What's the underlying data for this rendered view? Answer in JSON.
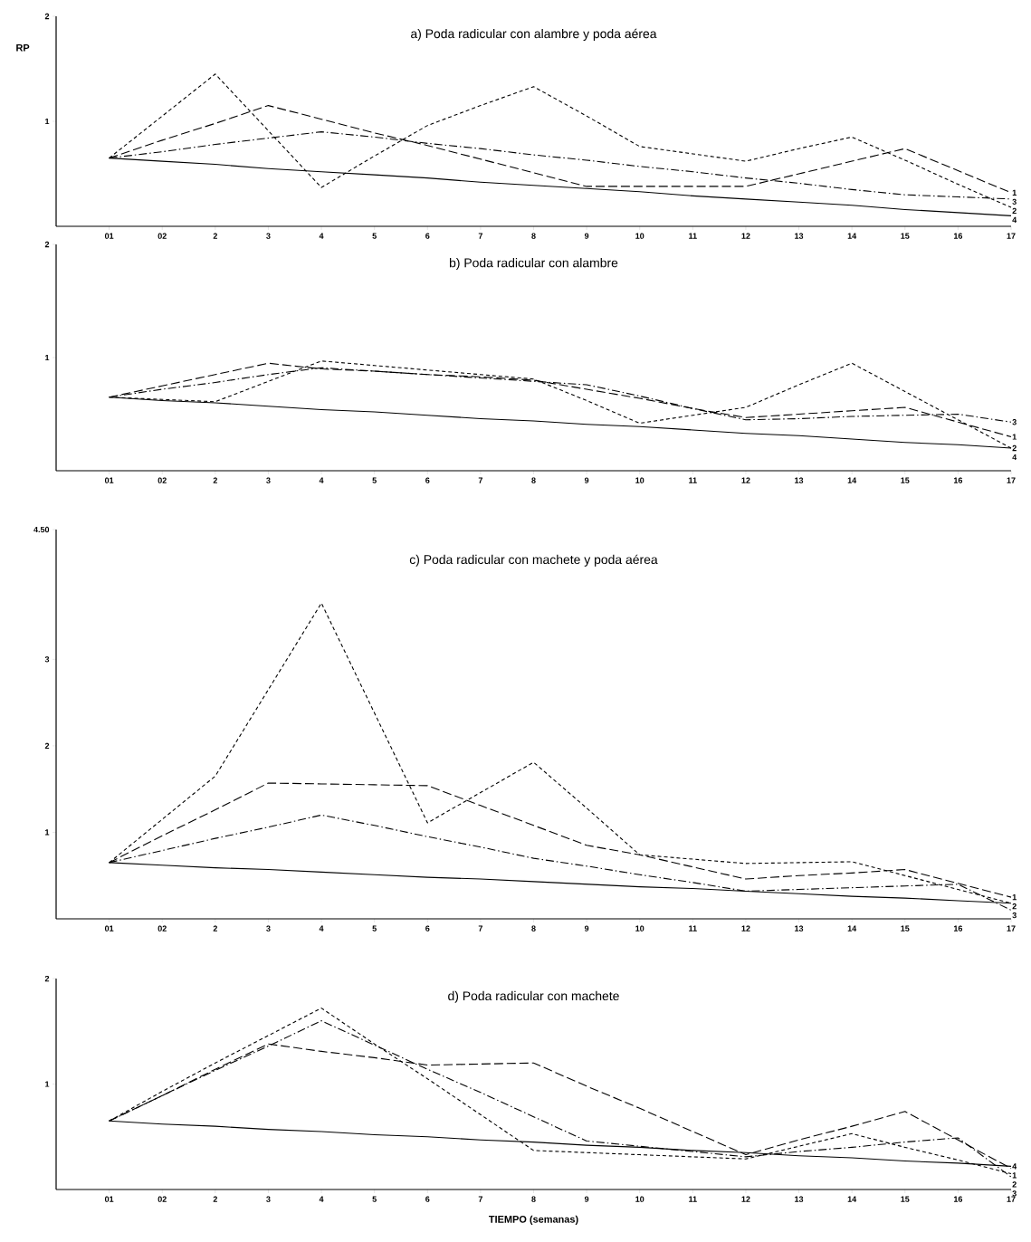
{
  "chart_data": [
    {
      "type": "line",
      "title": "a) Poda radicular con alambre y poda aérea",
      "ylabel": "RP",
      "categories": [
        "01",
        "02",
        "2",
        "3",
        "4",
        "5",
        "6",
        "7",
        "8",
        "9",
        "10",
        "11",
        "12",
        "13",
        "14",
        "15",
        "16",
        "17"
      ],
      "ylim": [
        0,
        2
      ],
      "yticks": [
        1,
        2
      ],
      "series": [
        {
          "name": "1",
          "color": "#000000",
          "line_style": "dashed",
          "values": [
            0.65,
            0.82,
            0.98,
            1.15,
            1.02,
            0.89,
            0.77,
            0.64,
            0.51,
            0.38,
            0.38,
            0.38,
            0.38,
            0.5,
            0.62,
            0.74,
            0.53,
            0.32
          ]
        },
        {
          "name": "2",
          "color": "#000000",
          "line_style": "dotted",
          "values": [
            0.65,
            1.05,
            1.45,
            0.91,
            0.37,
            0.67,
            0.96,
            1.15,
            1.33,
            1.05,
            0.76,
            0.69,
            0.62,
            0.74,
            0.85,
            0.63,
            0.4,
            0.18
          ]
        },
        {
          "name": "3",
          "color": "#000000",
          "line_style": "dashdot",
          "values": [
            0.65,
            0.71,
            0.78,
            0.84,
            0.9,
            0.85,
            0.79,
            0.74,
            0.68,
            0.63,
            0.57,
            0.52,
            0.46,
            0.41,
            0.35,
            0.3,
            0.28,
            0.26
          ]
        },
        {
          "name": "4",
          "color": "#000000",
          "line_style": "solid",
          "values": [
            0.65,
            0.62,
            0.59,
            0.55,
            0.52,
            0.49,
            0.46,
            0.42,
            0.39,
            0.36,
            0.33,
            0.29,
            0.26,
            0.23,
            0.2,
            0.16,
            0.13,
            0.1
          ]
        }
      ]
    },
    {
      "type": "line",
      "title": "b) Poda radicular con alambre",
      "categories": [
        "01",
        "02",
        "2",
        "3",
        "4",
        "5",
        "6",
        "7",
        "8",
        "9",
        "10",
        "11",
        "12",
        "13",
        "14",
        "15",
        "16",
        "17"
      ],
      "ylim": [
        0,
        2
      ],
      "yticks": [
        1,
        2
      ],
      "series": [
        {
          "name": "1",
          "color": "#000000",
          "line_style": "dashed",
          "values": [
            0.65,
            0.75,
            0.85,
            0.95,
            0.9,
            0.88,
            0.85,
            0.83,
            0.8,
            0.72,
            0.64,
            0.55,
            0.47,
            0.5,
            0.53,
            0.56,
            0.43,
            0.3
          ]
        },
        {
          "name": "2",
          "color": "#000000",
          "line_style": "dotted",
          "values": [
            0.65,
            0.63,
            0.61,
            0.79,
            0.97,
            0.93,
            0.89,
            0.85,
            0.81,
            0.62,
            0.42,
            0.49,
            0.56,
            0.76,
            0.95,
            0.7,
            0.45,
            0.2
          ]
        },
        {
          "name": "3",
          "color": "#000000",
          "line_style": "dashdot",
          "values": [
            0.65,
            0.72,
            0.78,
            0.85,
            0.91,
            0.88,
            0.85,
            0.82,
            0.79,
            0.76,
            0.66,
            0.55,
            0.45,
            0.46,
            0.48,
            0.49,
            0.5,
            0.43
          ]
        },
        {
          "name": "4",
          "color": "#000000",
          "line_style": "solid",
          "values": [
            0.65,
            0.62,
            0.6,
            0.57,
            0.54,
            0.52,
            0.49,
            0.46,
            0.44,
            0.41,
            0.39,
            0.36,
            0.33,
            0.31,
            0.28,
            0.25,
            0.23,
            0.2
          ]
        }
      ]
    },
    {
      "type": "line",
      "title": "c) Poda radicular con machete y poda aérea",
      "categories": [
        "01",
        "02",
        "2",
        "3",
        "4",
        "5",
        "6",
        "7",
        "8",
        "9",
        "10",
        "11",
        "12",
        "13",
        "14",
        "15",
        "16",
        "17"
      ],
      "ylim": [
        0,
        4.5
      ],
      "yticks": [
        1,
        2,
        3,
        {
          "value": 4.5,
          "label": "4.50"
        }
      ],
      "series": [
        {
          "name": "1",
          "color": "#000000",
          "line_style": "dashed",
          "values": [
            0.65,
            0.96,
            1.26,
            1.57,
            1.56,
            1.55,
            1.54,
            1.31,
            1.08,
            0.85,
            0.74,
            0.6,
            0.46,
            0.5,
            0.53,
            0.57,
            0.41,
            0.25
          ]
        },
        {
          "name": "2",
          "color": "#000000",
          "line_style": "dotted",
          "values": [
            0.65,
            1.15,
            1.65,
            2.65,
            3.65,
            2.38,
            1.11,
            1.46,
            1.81,
            1.28,
            0.74,
            0.69,
            0.64,
            0.65,
            0.66,
            0.5,
            0.34,
            0.18
          ]
        },
        {
          "name": "3",
          "color": "#000000",
          "line_style": "dashdot",
          "values": [
            0.65,
            0.79,
            0.93,
            1.06,
            1.2,
            1.08,
            0.95,
            0.83,
            0.7,
            0.61,
            0.51,
            0.42,
            0.32,
            0.34,
            0.36,
            0.38,
            0.4,
            0.1
          ]
        },
        {
          "color": "#000000",
          "line_style": "solid",
          "values": [
            0.65,
            0.62,
            0.59,
            0.57,
            0.54,
            0.51,
            0.48,
            0.46,
            0.43,
            0.4,
            0.37,
            0.35,
            0.32,
            0.29,
            0.26,
            0.24,
            0.21,
            0.18
          ]
        }
      ]
    },
    {
      "type": "line",
      "title": "d) Poda radicular con machete",
      "xlabel": "TIEMPO (semanas)",
      "categories": [
        "01",
        "02",
        "2",
        "3",
        "4",
        "5",
        "6",
        "7",
        "8",
        "9",
        "10",
        "11",
        "12",
        "13",
        "14",
        "15",
        "16",
        "17"
      ],
      "ylim": [
        0,
        2
      ],
      "yticks": [
        1,
        2
      ],
      "series": [
        {
          "name": "1",
          "color": "#000000",
          "line_style": "dashed",
          "values": [
            0.65,
            0.89,
            1.14,
            1.38,
            1.31,
            1.25,
            1.18,
            1.19,
            1.2,
            0.98,
            0.77,
            0.55,
            0.33,
            0.47,
            0.6,
            0.74,
            0.47,
            0.2
          ]
        },
        {
          "name": "2",
          "color": "#000000",
          "line_style": "dotted",
          "values": [
            0.65,
            0.93,
            1.2,
            1.46,
            1.72,
            1.38,
            1.05,
            0.71,
            0.37,
            0.35,
            0.33,
            0.31,
            0.29,
            0.41,
            0.53,
            0.4,
            0.28,
            0.15
          ]
        },
        {
          "name": "3",
          "color": "#000000",
          "line_style": "dashdot",
          "values": [
            0.65,
            0.89,
            1.13,
            1.36,
            1.6,
            1.37,
            1.14,
            0.92,
            0.69,
            0.46,
            0.41,
            0.36,
            0.31,
            0.36,
            0.4,
            0.45,
            0.49,
            0.12
          ]
        },
        {
          "name": "4",
          "color": "#000000",
          "line_style": "solid",
          "values": [
            0.65,
            0.62,
            0.6,
            0.57,
            0.55,
            0.52,
            0.5,
            0.47,
            0.45,
            0.42,
            0.4,
            0.37,
            0.35,
            0.32,
            0.3,
            0.27,
            0.25,
            0.22
          ]
        }
      ]
    }
  ]
}
